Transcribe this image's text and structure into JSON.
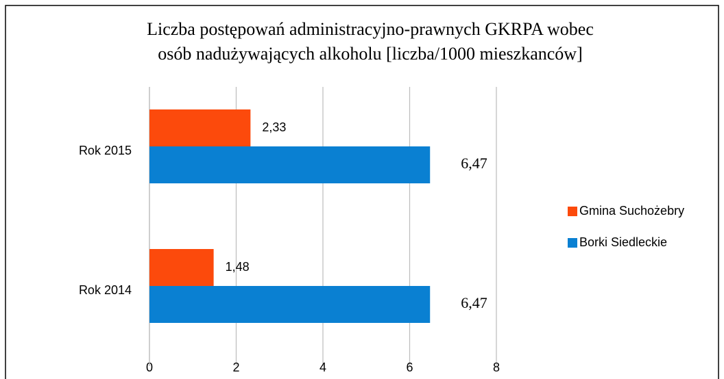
{
  "chart_data": {
    "type": "barh",
    "title": [
      "Liczba postępowań administracyjno-prawnych GKRPA wobec",
      "osób nadużywających alkoholu [liczba/1000 mieszkanców]"
    ],
    "categories": [
      "Rok 2015",
      "Rok 2014"
    ],
    "series": [
      {
        "name": "Gmina Suchożebry",
        "color": "#fc4a0c",
        "values": [
          2.33,
          1.48
        ],
        "value_labels": [
          "2,33",
          "1,48"
        ]
      },
      {
        "name": "Borki Siedleckie",
        "color": "#0a80d2",
        "values": [
          6.47,
          6.47
        ],
        "value_labels": [
          "6,47",
          "6,47"
        ]
      }
    ],
    "xlim": [
      0,
      8
    ],
    "xticks": [
      0,
      2,
      4,
      6,
      8
    ],
    "grid": true,
    "legend": "right"
  }
}
